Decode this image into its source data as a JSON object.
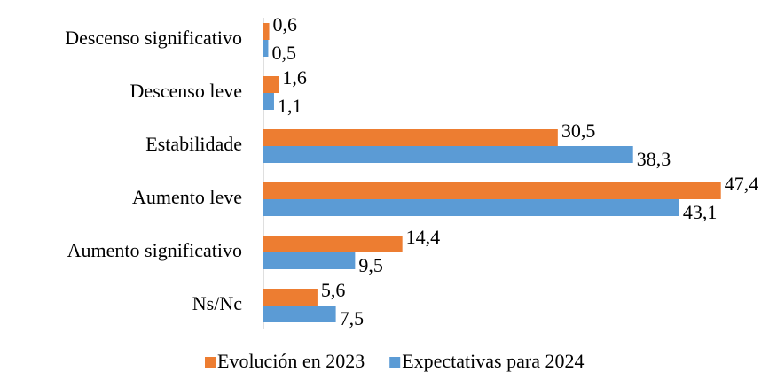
{
  "chart_data": {
    "type": "hbar",
    "categories": [
      "Descenso significativo",
      "Descenso leve",
      "Estabilidade",
      "Aumento leve",
      "Aumento significativo",
      "Ns/Nc"
    ],
    "series": [
      {
        "name": "Evolución en 2023",
        "color": "#ed7d31",
        "values": [
          0.6,
          1.6,
          30.5,
          47.4,
          14.4,
          5.6
        ],
        "value_labels": [
          "0,6",
          "1,6",
          "30,5",
          "47,4",
          "14,4",
          "5,6"
        ]
      },
      {
        "name": "Expectativas para 2024",
        "color": "#5b9bd5",
        "values": [
          0.5,
          1.1,
          38.3,
          43.1,
          9.5,
          7.5
        ],
        "value_labels": [
          "0,5",
          "1,1",
          "38,3",
          "43,1",
          "9,5",
          "7,5"
        ]
      }
    ],
    "xlim": [
      0,
      50
    ],
    "legend": "bottom"
  }
}
